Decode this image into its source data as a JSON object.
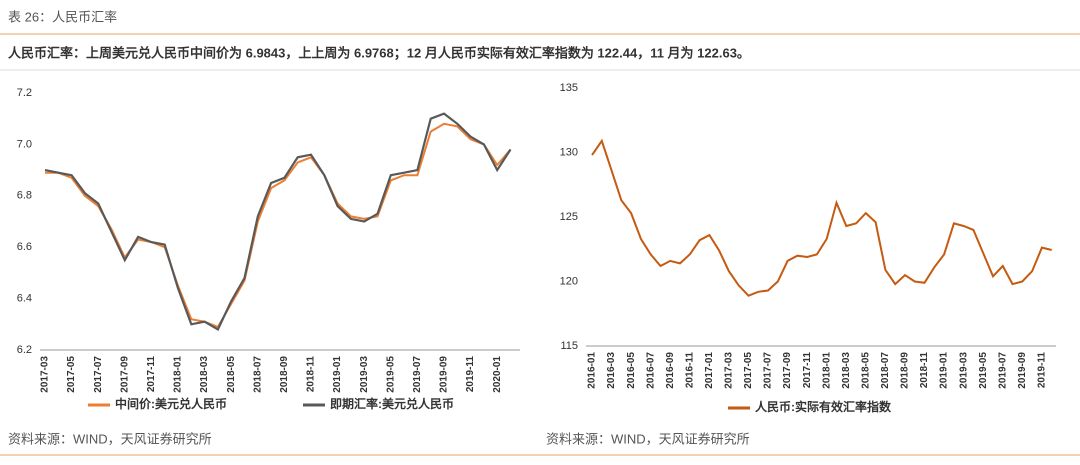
{
  "title": "表 26：人民币汇率",
  "subtitle": "人民币汇率：上周美元兑人民币中间价为 6.9843，上上周为 6.9768；12 月人民币实际有效汇率指数为 122.44，11 月为 122.63。",
  "chart_data": [
    {
      "type": "line",
      "categories": [
        "2017-03",
        null,
        "2017-05",
        null,
        "2017-07",
        null,
        "2017-09",
        null,
        "2017-11",
        null,
        "2018-01",
        null,
        "2018-03",
        null,
        "2018-05",
        null,
        "2018-07",
        null,
        "2018-09",
        null,
        "2018-11",
        null,
        "2019-01",
        null,
        "2019-03",
        null,
        "2019-05",
        null,
        "2019-07",
        null,
        "2019-09",
        null,
        "2019-11",
        null,
        "2020-01",
        null
      ],
      "series": [
        {
          "name": "中间价:美元兑人民币",
          "color": "#ed7d31",
          "values": [
            6.89,
            6.89,
            6.87,
            6.8,
            6.76,
            6.67,
            6.56,
            6.63,
            6.62,
            6.6,
            6.45,
            6.32,
            6.31,
            6.29,
            6.38,
            6.47,
            6.7,
            6.83,
            6.86,
            6.93,
            6.95,
            6.88,
            6.77,
            6.72,
            6.71,
            6.72,
            6.86,
            6.88,
            6.88,
            7.05,
            7.08,
            7.07,
            7.02,
            7.0,
            6.92,
            6.98
          ]
        },
        {
          "name": "即期汇率:美元兑人民币",
          "color": "#595959",
          "values": [
            6.9,
            6.89,
            6.88,
            6.81,
            6.77,
            6.66,
            6.55,
            6.64,
            6.62,
            6.61,
            6.44,
            6.3,
            6.31,
            6.28,
            6.39,
            6.48,
            6.72,
            6.85,
            6.87,
            6.95,
            6.96,
            6.88,
            6.76,
            6.71,
            6.7,
            6.73,
            6.88,
            6.89,
            6.9,
            7.1,
            7.12,
            7.08,
            7.03,
            7.0,
            6.9,
            6.98
          ]
        }
      ],
      "ylim": [
        6.2,
        7.2
      ],
      "yticks": [
        6.2,
        6.4,
        6.6,
        6.8,
        {
          "value": 7,
          "label": "7.0"
        },
        7.2
      ],
      "source": "资料来源：WIND，天风证券研究所"
    },
    {
      "type": "line",
      "categories": [
        "2016-01",
        null,
        "2016-03",
        null,
        "2016-05",
        null,
        "2016-07",
        null,
        "2016-09",
        null,
        "2016-11",
        null,
        "2017-01",
        null,
        "2017-03",
        null,
        "2017-05",
        null,
        "2017-07",
        null,
        "2017-09",
        null,
        "2017-11",
        null,
        "2018-01",
        null,
        "2018-03",
        null,
        "2018-05",
        null,
        "2018-07",
        null,
        "2018-09",
        null,
        "2018-11",
        null,
        "2019-01",
        null,
        "2019-03",
        null,
        "2019-05",
        null,
        "2019-07",
        null,
        "2019-09",
        null,
        "2019-11",
        null
      ],
      "series": [
        {
          "name": "人民币:实际有效汇率指数",
          "color": "#c55a11",
          "values": [
            129.8,
            130.9,
            128.6,
            126.3,
            125.3,
            123.3,
            122.1,
            121.2,
            121.6,
            121.4,
            122.1,
            123.2,
            123.6,
            122.4,
            120.8,
            119.7,
            118.9,
            119.2,
            119.3,
            120.0,
            121.6,
            122.0,
            121.9,
            122.1,
            123.3,
            126.1,
            124.3,
            124.5,
            125.3,
            124.6,
            120.9,
            119.8,
            120.5,
            120.0,
            119.9,
            121.1,
            122.1,
            124.5,
            124.3,
            124.0,
            122.2,
            120.4,
            121.2,
            119.8,
            120.0,
            120.8,
            122.63,
            122.44
          ]
        }
      ],
      "ylim": [
        115,
        135
      ],
      "yticks": [
        115,
        120,
        125,
        130,
        135
      ],
      "source": "资料来源：WIND，天风证券研究所"
    }
  ]
}
